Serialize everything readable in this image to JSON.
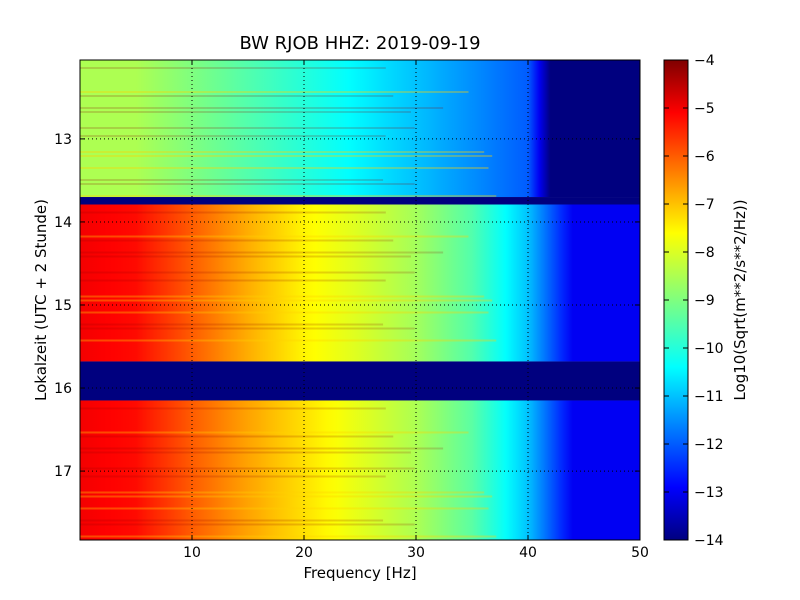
{
  "chart_data": {
    "type": "heatmap",
    "title": "BW RJOB HHZ: 2019-09-19",
    "xlabel": "Frequency [Hz]",
    "ylabel": "Lokalzeit (UTC + 2 Stunde)",
    "xlim": [
      0,
      50
    ],
    "ylim": [
      12.05,
      17.83
    ],
    "y_inverted": true,
    "x_ticks": [
      10,
      20,
      30,
      40,
      50
    ],
    "y_ticks": [
      13,
      14,
      15,
      16,
      17
    ],
    "grid": true,
    "colormap": "jet",
    "colorbar": {
      "label": "Log10(Sqrt(m**2/s**2/Hz))",
      "min": -14,
      "max": -4,
      "ticks": [
        -4,
        -5,
        -6,
        -7,
        -8,
        -9,
        -10,
        -11,
        -12,
        -13,
        -14
      ]
    },
    "segments": [
      {
        "from": 12.05,
        "to": 13.7,
        "level": "quiet",
        "values_at_freq": {
          "freq": [
            0,
            5,
            10,
            15,
            20,
            25,
            30,
            35,
            40,
            42,
            50
          ],
          "value": [
            -8.5,
            -8.5,
            -9,
            -9.5,
            -10,
            -10.5,
            -11,
            -11.5,
            -12,
            -14,
            -14
          ]
        }
      },
      {
        "from": 13.7,
        "to": 13.79,
        "level": "gap",
        "value": -14
      },
      {
        "from": 13.79,
        "to": 15.68,
        "level": "active",
        "values_at_freq": {
          "freq": [
            0,
            5,
            10,
            15,
            20,
            25,
            30,
            35,
            40,
            44,
            50
          ],
          "value": [
            -5,
            -5.2,
            -6,
            -6.8,
            -7.5,
            -8,
            -8.6,
            -9.5,
            -11,
            -13,
            -13
          ]
        }
      },
      {
        "from": 15.68,
        "to": 16.15,
        "level": "gap",
        "value": -14
      },
      {
        "from": 16.15,
        "to": 17.83,
        "level": "active",
        "values_at_freq": {
          "freq": [
            0,
            5,
            10,
            15,
            20,
            25,
            30,
            35,
            40,
            44,
            50
          ],
          "value": [
            -5,
            -5.2,
            -6,
            -6.7,
            -7.3,
            -7.9,
            -8.5,
            -9.4,
            -11,
            -13,
            -13
          ]
        }
      }
    ]
  }
}
